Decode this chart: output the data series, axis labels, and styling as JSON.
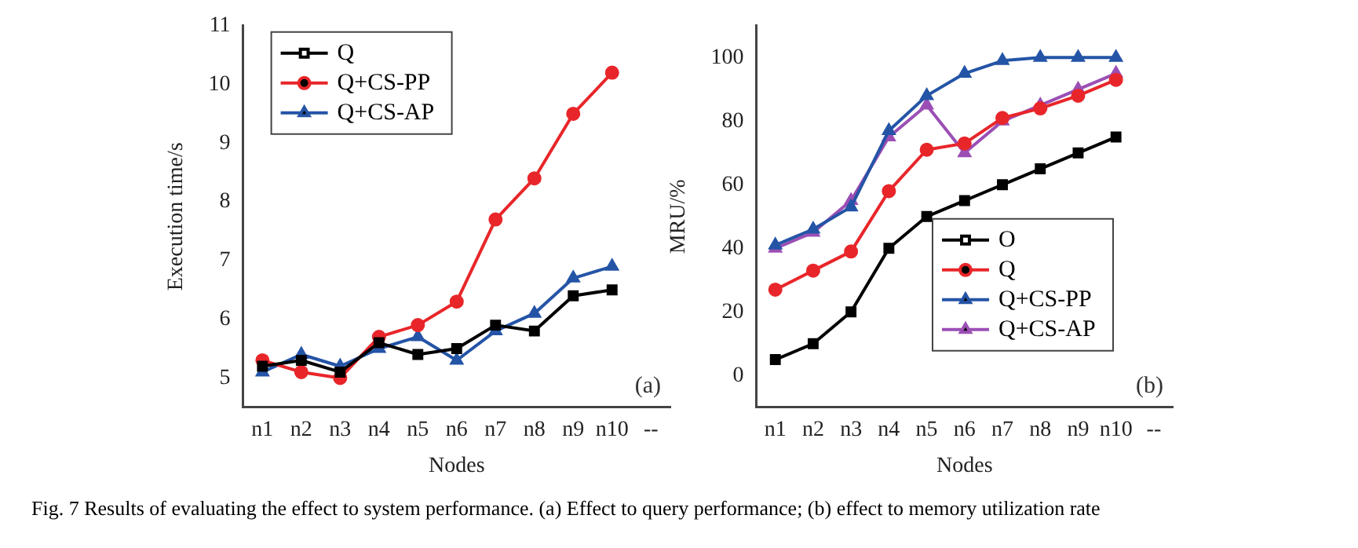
{
  "chart_data": [
    {
      "type": "line",
      "xlabel": "Nodes",
      "ylabel": "Execution time/s",
      "categories": [
        "n1",
        "n2",
        "n3",
        "n4",
        "n5",
        "n6",
        "n7",
        "n8",
        "n9",
        "n10",
        "--"
      ],
      "ylim": [
        4.5,
        11
      ],
      "yticks": [
        5,
        6,
        7,
        8,
        9,
        10,
        11
      ],
      "grid": false,
      "legend": "top left",
      "line_style": "solid",
      "annotations": [
        "(a)",
        "Fig. 7    Results of evaluating the effect to system performance. (a) Effect to query performance; (b) effect to memory utilization rate"
      ],
      "series": [
        {
          "name": "Q",
          "color": "#000000",
          "marker": "square",
          "values": [
            5.2,
            5.3,
            5.1,
            5.6,
            5.4,
            5.5,
            5.9,
            5.8,
            6.4,
            6.5,
            null
          ]
        },
        {
          "name": "Q+CS-PP",
          "color": "#e8262a",
          "marker": "circle",
          "values": [
            5.3,
            5.1,
            5.0,
            5.7,
            5.9,
            6.3,
            7.7,
            8.4,
            9.5,
            10.2,
            null
          ]
        },
        {
          "name": "Q+CS-AP",
          "color": "#2454a6",
          "marker": "triangle",
          "values": [
            5.1,
            5.4,
            5.2,
            5.5,
            5.7,
            5.3,
            5.8,
            6.1,
            6.7,
            6.9,
            null
          ]
        }
      ]
    },
    {
      "type": "line",
      "xlabel": "Nodes",
      "ylabel": "MRU/%",
      "categories": [
        "n1",
        "n2",
        "n3",
        "n4",
        "n5",
        "n6",
        "n7",
        "n8",
        "n9",
        "n10",
        "--"
      ],
      "ylim": [
        -10,
        110
      ],
      "yticks": [
        0,
        20,
        40,
        60,
        80,
        100
      ],
      "grid": false,
      "legend": "bottom right",
      "line_style": "solid",
      "annotations": [
        "(b)"
      ],
      "series": [
        {
          "name": "O",
          "color": "#000000",
          "marker": "square",
          "values": [
            5,
            10,
            20,
            40,
            50,
            55,
            60,
            65,
            70,
            75,
            null
          ]
        },
        {
          "name": "Q",
          "color": "#e8262a",
          "marker": "circle",
          "values": [
            27,
            33,
            39,
            58,
            71,
            73,
            81,
            84,
            88,
            93,
            null
          ]
        },
        {
          "name": "Q+CS-PP",
          "color": "#2454a6",
          "marker": "triangle",
          "values": [
            41,
            46,
            53,
            77,
            88,
            95,
            99,
            100,
            100,
            100,
            null
          ]
        },
        {
          "name": "Q+CS-AP",
          "color": "#9b4fb5",
          "marker": "triangle",
          "values": [
            40,
            45,
            55,
            75,
            85,
            70,
            80,
            85,
            90,
            95,
            null
          ]
        }
      ]
    }
  ]
}
